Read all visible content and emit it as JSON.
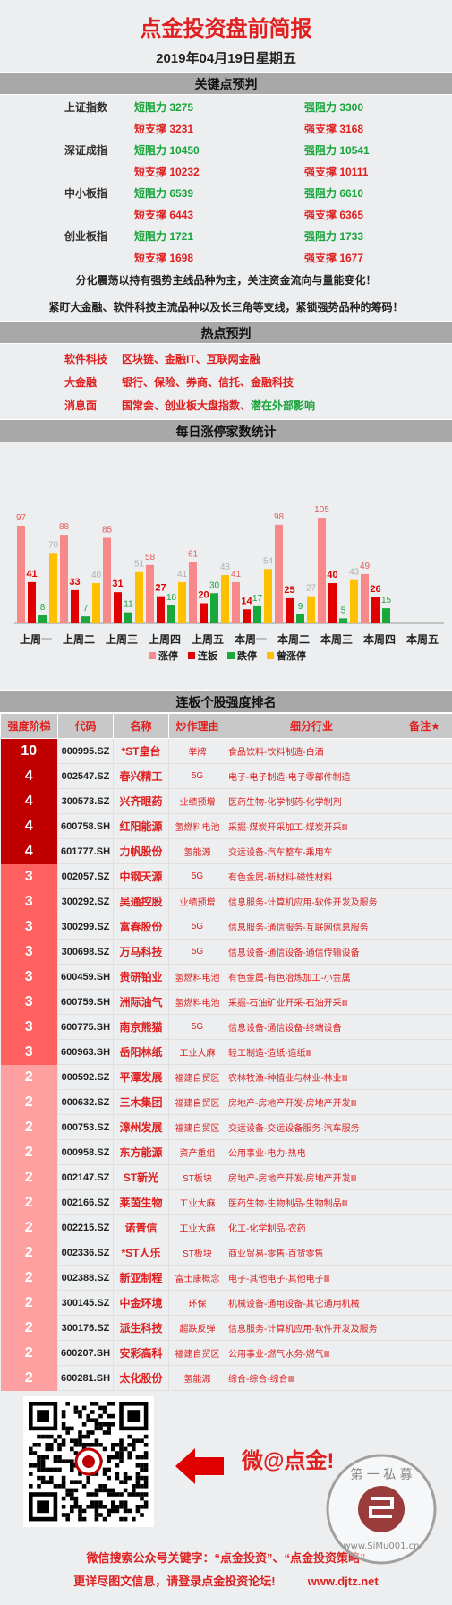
{
  "header": {
    "title": "点金投资盘前简报",
    "date": "2019年04月19日星期五"
  },
  "key_points": {
    "section_title": "关键点预判",
    "rows": [
      {
        "index": "上证指数",
        "short_res": "短阻力  3275",
        "strong_res": "强阻力  3300",
        "short_sup": "短支撑  3231",
        "strong_sup": "强支撑  3168"
      },
      {
        "index": "深证成指",
        "short_res": "短阻力  10450",
        "strong_res": "强阻力  10541",
        "short_sup": "短支撑  10232",
        "strong_sup": "强支撑  10111"
      },
      {
        "index": "中小板指",
        "short_res": "短阻力  6539",
        "strong_res": "强阻力  6610",
        "short_sup": "短支撑  6443",
        "strong_sup": "强支撑  6365"
      },
      {
        "index": "创业板指",
        "short_res": "短阻力  1721",
        "strong_res": "强阻力  1733",
        "short_sup": "短支撑  1698",
        "strong_sup": "强支撑  1677"
      }
    ],
    "note1": "分化震荡以持有强势主线品种为主，关注资金流向与量能变化！",
    "note2": "紧盯大金融、软件科技主流品种以及长三角等支线，紧锁强势品种的筹码！"
  },
  "hot": {
    "section_title": "热点预判",
    "rows": [
      {
        "key": "软件科技",
        "value": "区块链、金融IT、互联网金融"
      },
      {
        "key": "大金融",
        "value": "银行、保险、券商、信托、金融科技"
      },
      {
        "key": "消息面",
        "value_red": "国常会、创业板大盘指数、",
        "value_green": "潜在外部影响"
      }
    ]
  },
  "chart_section_title": "每日涨停家数统计",
  "chart_data": {
    "type": "bar",
    "categories": [
      "上周一",
      "上周二",
      "上周三",
      "上周四",
      "上周五",
      "本周一",
      "本周二",
      "本周三",
      "本周四",
      "本周五"
    ],
    "series": [
      {
        "name": "涨停",
        "color": "#f7898b",
        "values": [
          97,
          88,
          85,
          58,
          61,
          41,
          98,
          105,
          49,
          null
        ]
      },
      {
        "name": "连板",
        "color": "#e00000",
        "values": [
          41,
          33,
          31,
          27,
          20,
          14,
          25,
          40,
          26,
          null
        ]
      },
      {
        "name": "跌停",
        "color": "#1aa83a",
        "values": [
          8,
          7,
          11,
          18,
          30,
          17,
          9,
          5,
          15,
          null
        ]
      },
      {
        "name": "曾涨停",
        "color": "#ffc000",
        "values": [
          70,
          40,
          51,
          41,
          48,
          54,
          27,
          43,
          null,
          null
        ]
      }
    ],
    "ylim": [
      0,
      110
    ],
    "legend": "bottom"
  },
  "ranking": {
    "section_title": "连板个股强度排名",
    "headers": [
      "强度阶梯",
      "代码",
      "名称",
      "炒作理由",
      "细分行业",
      "备注★"
    ],
    "rows": [
      {
        "lvl": "10",
        "code": "000995.SZ",
        "name": "*ST皇台",
        "reason": "举牌",
        "industry": "食品饮料-饮料制造-白酒",
        "tier": "t1"
      },
      {
        "lvl": "4",
        "code": "002547.SZ",
        "name": "春兴精工",
        "reason": "5G",
        "industry": "电子-电子制造-电子零部件制造",
        "tier": "t1"
      },
      {
        "lvl": "4",
        "code": "300573.SZ",
        "name": "兴齐眼药",
        "reason": "业绩预增",
        "industry": "医药生物-化学制药-化学制剂",
        "tier": "t1"
      },
      {
        "lvl": "4",
        "code": "600758.SH",
        "name": "红阳能源",
        "reason": "氢燃料电池",
        "industry": "采掘-煤炭开采加工-煤炭开采Ⅲ",
        "tier": "t1"
      },
      {
        "lvl": "4",
        "code": "601777.SH",
        "name": "力帆股份",
        "reason": "氢能源",
        "industry": "交运设备-汽车整车-乘用车",
        "tier": "t1"
      },
      {
        "lvl": "3",
        "code": "002057.SZ",
        "name": "中钢天源",
        "reason": "5G",
        "industry": "有色金属-新材料-磁性材料",
        "tier": "t2"
      },
      {
        "lvl": "3",
        "code": "300292.SZ",
        "name": "吴通控股",
        "reason": "业绩预增",
        "industry": "信息服务-计算机应用-软件开发及服务",
        "tier": "t2"
      },
      {
        "lvl": "3",
        "code": "300299.SZ",
        "name": "富春股份",
        "reason": "5G",
        "industry": "信息服务-通信服务-互联网信息服务",
        "tier": "t2"
      },
      {
        "lvl": "3",
        "code": "300698.SZ",
        "name": "万马科技",
        "reason": "5G",
        "industry": "信息设备-通信设备-通信传输设备",
        "tier": "t2"
      },
      {
        "lvl": "3",
        "code": "600459.SH",
        "name": "贵研铂业",
        "reason": "氢燃料电池",
        "industry": "有色金属-有色冶炼加工-小金属",
        "tier": "t2"
      },
      {
        "lvl": "3",
        "code": "600759.SH",
        "name": "洲际油气",
        "reason": "氢燃料电池",
        "industry": "采掘-石油矿业开采-石油开采Ⅲ",
        "tier": "t2"
      },
      {
        "lvl": "3",
        "code": "600775.SH",
        "name": "南京熊猫",
        "reason": "5G",
        "industry": "信息设备-通信设备-终端设备",
        "tier": "t2"
      },
      {
        "lvl": "3",
        "code": "600963.SH",
        "name": "岳阳林纸",
        "reason": "工业大麻",
        "industry": "轻工制造-造纸-造纸Ⅲ",
        "tier": "t2"
      },
      {
        "lvl": "2",
        "code": "000592.SZ",
        "name": "平潭发展",
        "reason": "福建自贸区",
        "industry": "农林牧渔-种植业与林业-林业Ⅲ",
        "tier": "t3"
      },
      {
        "lvl": "2",
        "code": "000632.SZ",
        "name": "三木集团",
        "reason": "福建自贸区",
        "industry": "房地产-房地产开发-房地产开发Ⅲ",
        "tier": "t3"
      },
      {
        "lvl": "2",
        "code": "000753.SZ",
        "name": "漳州发展",
        "reason": "福建自贸区",
        "industry": "交运设备-交运设备服务-汽车服务",
        "tier": "t3"
      },
      {
        "lvl": "2",
        "code": "000958.SZ",
        "name": "东方能源",
        "reason": "资产重组",
        "industry": "公用事业-电力-热电",
        "tier": "t3"
      },
      {
        "lvl": "2",
        "code": "002147.SZ",
        "name": "ST新光",
        "reason": "ST板块",
        "industry": "房地产-房地产开发-房地产开发Ⅲ",
        "tier": "t3"
      },
      {
        "lvl": "2",
        "code": "002166.SZ",
        "name": "莱茵生物",
        "reason": "工业大麻",
        "industry": "医药生物-生物制品-生物制品Ⅲ",
        "tier": "t3"
      },
      {
        "lvl": "2",
        "code": "002215.SZ",
        "name": "诺普信",
        "reason": "工业大麻",
        "industry": "化工-化学制品-农药",
        "tier": "t3"
      },
      {
        "lvl": "2",
        "code": "002336.SZ",
        "name": "*ST人乐",
        "reason": "ST板块",
        "industry": "商业贸易-零售-百货零售",
        "tier": "t3"
      },
      {
        "lvl": "2",
        "code": "002388.SZ",
        "name": "新亚制程",
        "reason": "富士康概念",
        "industry": "电子-其他电子-其他电子Ⅲ",
        "tier": "t3"
      },
      {
        "lvl": "2",
        "code": "300145.SZ",
        "name": "中金环境",
        "reason": "环保",
        "industry": "机械设备-通用设备-其它通用机械",
        "tier": "t3"
      },
      {
        "lvl": "2",
        "code": "300176.SZ",
        "name": "派生科技",
        "reason": "超跌反弹",
        "industry": "信息服务-计算机应用-软件开发及服务",
        "tier": "t3"
      },
      {
        "lvl": "2",
        "code": "600207.SH",
        "name": "安彩高科",
        "reason": "福建自贸区",
        "industry": "公用事业-燃气水务-燃气Ⅲ",
        "tier": "t3"
      },
      {
        "lvl": "2",
        "code": "600281.SH",
        "name": "太化股份",
        "reason": "氢能源",
        "industry": "综合-综合-综合Ⅲ",
        "tier": "t3"
      }
    ]
  },
  "footer": {
    "wei_label": "微@点金!",
    "stamp_text": "第 一 私 募",
    "stamp_url": "www.SiMu001.cn",
    "line1": "微信搜索公众号关键字：“点金投资”、“点金投资策略”",
    "line2": "更详尽图文信息，请登录点金投资论坛!          www.djtz.net"
  }
}
